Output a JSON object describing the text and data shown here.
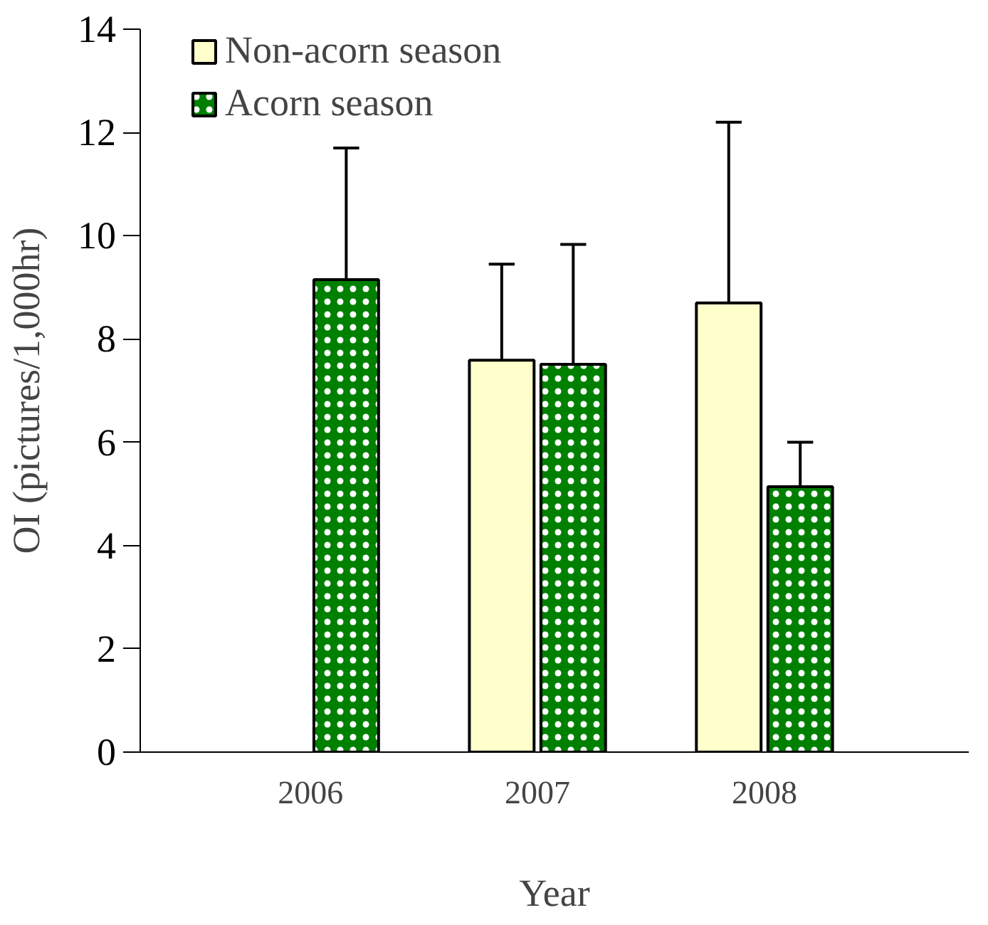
{
  "chart_data": {
    "type": "bar",
    "xlabel": "Year",
    "ylabel": "OI (pictures/1,000hr)",
    "categories": [
      "2006",
      "2007",
      "2008"
    ],
    "series": [
      {
        "name": "Non-acorn season",
        "color": "#ffffcc",
        "values": [
          null,
          7.59,
          8.7
        ],
        "errors": [
          null,
          [
            7.59,
            9.45
          ],
          [
            8.7,
            12.2
          ]
        ]
      },
      {
        "name": "Acorn season",
        "color": "#008000",
        "values": [
          9.15,
          7.51,
          5.14
        ],
        "errors": [
          [
            9.15,
            11.7
          ],
          [
            7.51,
            9.83
          ],
          [
            5.14,
            6.0
          ]
        ]
      }
    ],
    "ylim": [
      0,
      14
    ],
    "yticks": [
      0,
      2,
      4,
      6,
      8,
      10,
      12,
      14
    ],
    "grid": false,
    "legend": "top left"
  }
}
